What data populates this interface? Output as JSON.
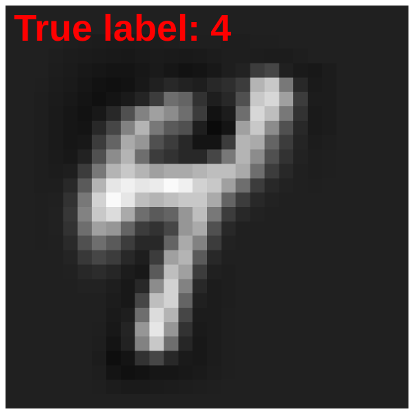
{
  "label": {
    "text": "True label: 4",
    "color": "#ff0000"
  },
  "image": {
    "background_color": "#202020",
    "grid_size": 28,
    "pixels": [
      [
        32,
        32,
        32,
        32,
        32,
        32,
        32,
        32,
        32,
        32,
        32,
        32,
        32,
        32,
        32,
        32,
        32,
        32,
        32,
        32,
        32,
        32,
        32,
        32,
        32,
        32,
        32,
        32
      ],
      [
        32,
        32,
        32,
        32,
        32,
        32,
        32,
        32,
        32,
        32,
        32,
        32,
        32,
        32,
        32,
        32,
        32,
        32,
        32,
        32,
        32,
        32,
        32,
        32,
        32,
        32,
        32,
        32
      ],
      [
        32,
        32,
        32,
        32,
        30,
        29,
        28,
        27,
        27,
        28,
        29,
        30,
        31,
        31,
        31,
        30,
        30,
        31,
        31,
        32,
        32,
        32,
        32,
        32,
        32,
        32,
        32,
        32
      ],
      [
        32,
        32,
        32,
        30,
        28,
        27,
        26,
        25,
        24,
        26,
        27,
        26,
        25,
        26,
        28,
        30,
        30,
        29,
        28,
        28,
        30,
        32,
        32,
        32,
        32,
        32,
        32,
        32
      ],
      [
        32,
        32,
        32,
        29,
        27,
        24,
        22,
        20,
        20,
        23,
        26,
        22,
        18,
        20,
        24,
        30,
        34,
        60,
        70,
        32,
        26,
        24,
        28,
        32,
        32,
        32,
        32,
        32
      ],
      [
        32,
        32,
        31,
        28,
        26,
        22,
        18,
        16,
        18,
        24,
        32,
        40,
        34,
        30,
        40,
        46,
        60,
        180,
        200,
        120,
        40,
        26,
        28,
        32,
        32,
        32,
        32,
        32
      ],
      [
        32,
        32,
        30,
        27,
        24,
        20,
        16,
        20,
        26,
        36,
        60,
        110,
        100,
        50,
        30,
        40,
        80,
        200,
        215,
        160,
        60,
        28,
        28,
        32,
        32,
        32,
        32,
        32
      ],
      [
        32,
        32,
        30,
        26,
        22,
        18,
        24,
        40,
        80,
        130,
        160,
        140,
        110,
        60,
        18,
        28,
        110,
        215,
        190,
        120,
        50,
        26,
        28,
        32,
        32,
        32,
        32,
        32
      ],
      [
        32,
        32,
        30,
        26,
        22,
        20,
        40,
        70,
        130,
        180,
        120,
        90,
        80,
        30,
        10,
        20,
        160,
        200,
        140,
        80,
        40,
        26,
        28,
        32,
        32,
        32,
        32,
        32
      ],
      [
        32,
        32,
        30,
        26,
        22,
        24,
        60,
        100,
        170,
        150,
        80,
        60,
        40,
        20,
        20,
        60,
        180,
        170,
        100,
        60,
        36,
        28,
        30,
        32,
        32,
        32,
        32,
        32
      ],
      [
        32,
        32,
        30,
        27,
        24,
        34,
        80,
        140,
        180,
        110,
        60,
        50,
        40,
        40,
        70,
        120,
        180,
        140,
        80,
        50,
        34,
        30,
        31,
        32,
        32,
        32,
        32,
        32
      ],
      [
        32,
        32,
        30,
        28,
        30,
        60,
        120,
        180,
        200,
        180,
        160,
        170,
        170,
        180,
        190,
        190,
        170,
        110,
        60,
        40,
        32,
        30,
        31,
        32,
        32,
        32,
        32,
        32
      ],
      [
        32,
        32,
        30,
        30,
        40,
        90,
        180,
        230,
        240,
        230,
        235,
        250,
        240,
        210,
        200,
        160,
        110,
        60,
        40,
        34,
        32,
        31,
        32,
        32,
        32,
        32,
        32,
        32
      ],
      [
        32,
        32,
        31,
        32,
        50,
        120,
        210,
        250,
        230,
        190,
        180,
        190,
        200,
        200,
        170,
        100,
        60,
        40,
        34,
        32,
        32,
        32,
        32,
        32,
        32,
        32,
        32,
        32
      ],
      [
        32,
        32,
        31,
        33,
        55,
        130,
        200,
        220,
        170,
        110,
        90,
        100,
        150,
        190,
        120,
        60,
        40,
        34,
        32,
        32,
        32,
        32,
        32,
        32,
        32,
        32,
        32,
        32
      ],
      [
        32,
        32,
        31,
        33,
        50,
        110,
        160,
        150,
        100,
        60,
        50,
        70,
        150,
        170,
        80,
        40,
        32,
        32,
        32,
        32,
        32,
        32,
        32,
        32,
        32,
        32,
        32,
        32
      ],
      [
        32,
        32,
        31,
        32,
        42,
        80,
        110,
        90,
        60,
        40,
        40,
        100,
        170,
        130,
        60,
        34,
        32,
        32,
        32,
        32,
        32,
        32,
        32,
        32,
        32,
        32,
        32,
        32
      ],
      [
        32,
        32,
        32,
        32,
        36,
        56,
        70,
        60,
        40,
        30,
        60,
        160,
        180,
        90,
        40,
        32,
        32,
        32,
        32,
        32,
        32,
        32,
        32,
        32,
        32,
        32,
        32,
        32
      ],
      [
        32,
        32,
        32,
        32,
        33,
        40,
        44,
        38,
        28,
        24,
        90,
        190,
        160,
        60,
        32,
        30,
        32,
        32,
        32,
        32,
        32,
        32,
        32,
        32,
        32,
        32,
        32,
        32
      ],
      [
        32,
        32,
        32,
        32,
        32,
        34,
        34,
        30,
        24,
        40,
        140,
        210,
        130,
        40,
        28,
        30,
        32,
        32,
        32,
        32,
        32,
        32,
        32,
        32,
        32,
        32,
        32,
        32
      ],
      [
        32,
        32,
        32,
        32,
        32,
        32,
        32,
        28,
        24,
        70,
        190,
        210,
        100,
        32,
        28,
        30,
        32,
        32,
        32,
        32,
        32,
        32,
        32,
        32,
        32,
        32,
        32,
        32
      ],
      [
        32,
        32,
        32,
        32,
        32,
        32,
        32,
        26,
        30,
        110,
        220,
        180,
        70,
        28,
        28,
        31,
        32,
        32,
        32,
        32,
        32,
        32,
        32,
        32,
        32,
        32,
        32,
        32
      ],
      [
        32,
        32,
        32,
        32,
        32,
        32,
        31,
        24,
        36,
        150,
        230,
        150,
        50,
        26,
        28,
        31,
        32,
        32,
        32,
        32,
        32,
        32,
        32,
        32,
        32,
        32,
        32,
        32
      ],
      [
        32,
        32,
        32,
        32,
        32,
        32,
        30,
        20,
        34,
        130,
        200,
        110,
        38,
        24,
        28,
        31,
        32,
        32,
        32,
        32,
        32,
        32,
        32,
        32,
        32,
        32,
        32,
        32
      ],
      [
        32,
        32,
        32,
        32,
        32,
        32,
        28,
        14,
        20,
        50,
        70,
        40,
        26,
        24,
        28,
        31,
        32,
        32,
        32,
        32,
        32,
        32,
        32,
        32,
        32,
        32,
        32,
        32
      ],
      [
        32,
        32,
        32,
        32,
        32,
        32,
        30,
        20,
        16,
        18,
        22,
        22,
        24,
        26,
        29,
        31,
        32,
        32,
        32,
        32,
        32,
        32,
        32,
        32,
        32,
        32,
        32,
        32
      ],
      [
        32,
        32,
        32,
        32,
        32,
        32,
        31,
        28,
        26,
        26,
        27,
        28,
        29,
        30,
        31,
        32,
        32,
        32,
        32,
        32,
        32,
        32,
        32,
        32,
        32,
        32,
        32,
        32
      ],
      [
        32,
        32,
        32,
        32,
        32,
        32,
        32,
        32,
        32,
        32,
        32,
        32,
        32,
        32,
        32,
        32,
        32,
        32,
        32,
        32,
        32,
        32,
        32,
        32,
        32,
        32,
        32,
        32
      ]
    ]
  }
}
